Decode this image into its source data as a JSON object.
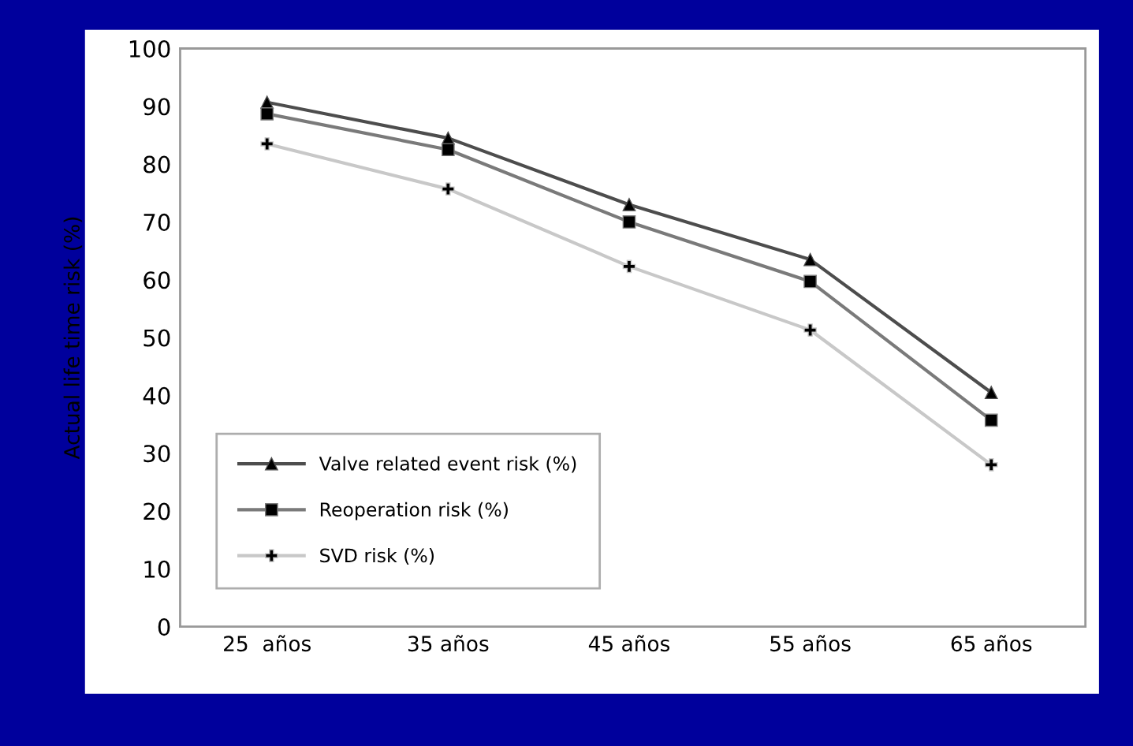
{
  "chart_data": {
    "type": "line",
    "ylabel": "Actual life time risk (%)",
    "categories": [
      "25  años",
      "35 años",
      "45 años",
      "55 años",
      "65 años"
    ],
    "series": [
      {
        "name": "Valve related event risk (%)",
        "color": "#4d4d4d",
        "marker": "triangle",
        "values": [
          90.7,
          84.5,
          73,
          63.5,
          40.5
        ]
      },
      {
        "name": "Reoperation risk (%)",
        "color": "#7a7a7a",
        "marker": "square",
        "values": [
          88.7,
          82.5,
          70,
          59.7,
          35.7
        ]
      },
      {
        "name": "SVD risk (%)",
        "color": "#c8c8c8",
        "marker": "cross",
        "values": [
          83.5,
          75.7,
          62.3,
          51.3,
          28
        ]
      }
    ],
    "ylim": [
      0,
      100
    ],
    "yticks": [
      0,
      10,
      20,
      30,
      40,
      50,
      60,
      70,
      80,
      90,
      100
    ],
    "grid": false,
    "legend": "bottom left",
    "line_style": "solid"
  }
}
